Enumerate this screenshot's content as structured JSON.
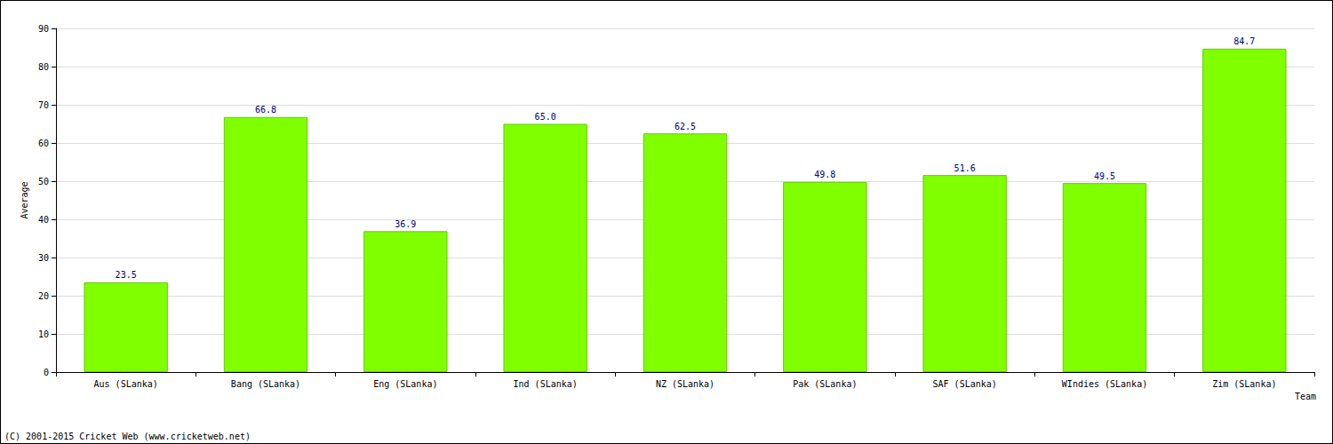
{
  "chart_data": {
    "type": "bar",
    "categories": [
      "Aus (SLanka)",
      "Bang (SLanka)",
      "Eng (SLanka)",
      "Ind (SLanka)",
      "NZ (SLanka)",
      "Pak (SLanka)",
      "SAF (SLanka)",
      "WIndies (SLanka)",
      "Zim (SLanka)"
    ],
    "values": [
      23.5,
      66.8,
      36.9,
      65.0,
      62.5,
      49.8,
      51.6,
      49.5,
      84.7
    ],
    "value_labels": [
      "23.5",
      "66.8",
      "36.9",
      "65.0",
      "62.5",
      "49.8",
      "51.6",
      "49.5",
      "84.7"
    ],
    "data_labels": true,
    "color": "#7fff00",
    "x_label": "Team",
    "y_label": "Average",
    "ylim": [
      0,
      90
    ],
    "yticks": [
      0,
      10,
      20,
      30,
      40,
      50,
      60,
      70,
      80,
      90
    ],
    "grid": true,
    "annotations": [
      "(C) 2001-2015 Cricket Web (www.cricketweb.net)"
    ]
  }
}
